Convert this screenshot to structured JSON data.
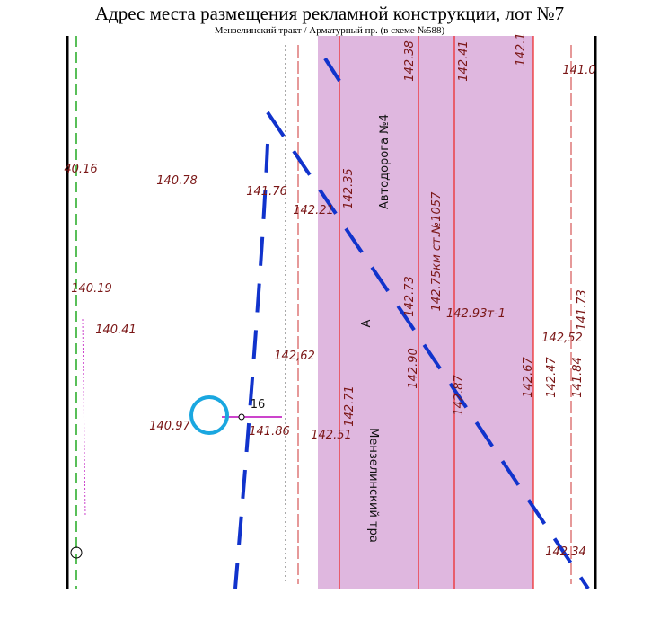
{
  "header": {
    "title": "Адрес места размещения рекламной конструкции, лот №7",
    "subtitle": "Мензелинский тракт / Арматурный пр. (в схеме №588)"
  },
  "labels": [
    "40.16",
    "140.78",
    "141.76",
    "142.21",
    "142.35",
    "Автодорога №4",
    "142.38",
    "142.41",
    "142.1",
    "142.75км ст.№1057",
    "142.73",
    "142.93т-1",
    "140.19",
    "140.41",
    "142,62",
    "142.90",
    "142,52",
    "141.73",
    "142.47",
    "141.84",
    "142.87",
    "142.67",
    "142.71",
    "16",
    "141.86",
    "142.51",
    "140.97",
    "Мензелинский тра",
    "А",
    "142.34",
    "141.0"
  ]
}
